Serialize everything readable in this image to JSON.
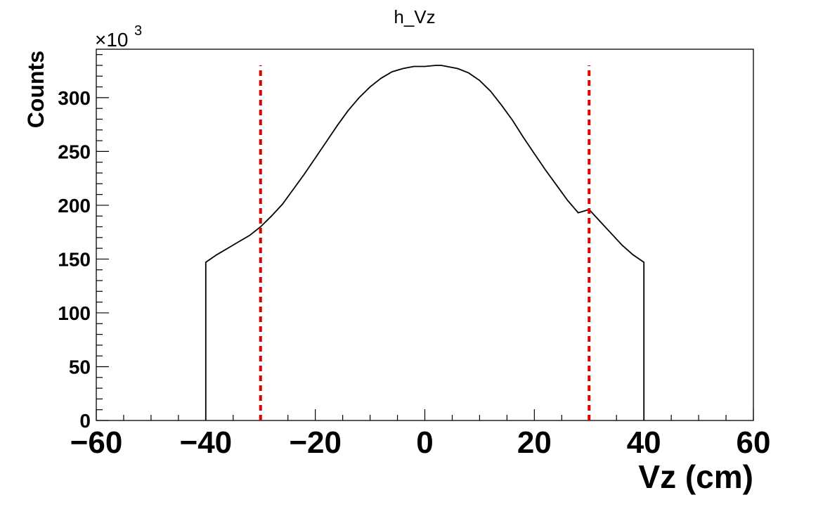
{
  "chart_data": {
    "type": "line",
    "title": "h_Vz",
    "xlabel": "Vz (cm)",
    "ylabel": "Counts",
    "y_multiplier_base": "×10",
    "y_multiplier_exp": "3",
    "xlim": [
      -60,
      60
    ],
    "ylim": [
      0,
      345
    ],
    "x_ticks": [
      -60,
      -40,
      -20,
      0,
      20,
      40,
      60
    ],
    "x_tick_labels": [
      "−60",
      "−40",
      "−20",
      "0",
      "20",
      "40",
      "60"
    ],
    "y_ticks": [
      0,
      50,
      100,
      150,
      200,
      250,
      300
    ],
    "y_tick_labels": [
      "0",
      "50",
      "100",
      "150",
      "200",
      "250",
      "300"
    ],
    "grid": false,
    "series": [
      {
        "color": "#000000",
        "style": "step",
        "x": [
          -40,
          -38,
          -36,
          -34,
          -32,
          -30,
          -28,
          -26,
          -24,
          -22,
          -20,
          -18,
          -16,
          -14,
          -12,
          -10,
          -8,
          -6,
          -4,
          -2,
          0,
          2,
          3,
          4,
          6,
          8,
          10,
          12,
          14,
          16,
          18,
          20,
          22,
          24,
          26,
          28,
          30,
          32,
          34,
          36,
          38,
          40
        ],
        "y": [
          147,
          154,
          160,
          166,
          172,
          180,
          190,
          201,
          215,
          229,
          244,
          259,
          274,
          288,
          300,
          310,
          318,
          324,
          327,
          329,
          329,
          330,
          330,
          329,
          327,
          323,
          316,
          306,
          293,
          279,
          263,
          248,
          233,
          219,
          205,
          193,
          196,
          185,
          174,
          163,
          154,
          147
        ]
      }
    ],
    "annotations": [
      {
        "type": "vline",
        "x": -30,
        "y_top": 330,
        "color": "#e00000",
        "style": "dashed"
      },
      {
        "type": "vline",
        "x": 30,
        "y_top": 330,
        "color": "#e00000",
        "style": "dashed"
      }
    ]
  }
}
